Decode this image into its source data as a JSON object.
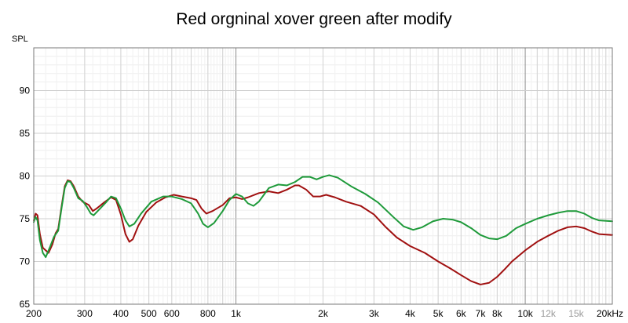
{
  "chart_data": {
    "type": "line",
    "title": "Red orgninal xover green after modify",
    "ylabel": "SPL",
    "xlabel": "",
    "x_scale": "log",
    "xlim": [
      200,
      20000
    ],
    "ylim": [
      65,
      95
    ],
    "grid": true,
    "x_ticks": [
      {
        "value": 200,
        "label": "200"
      },
      {
        "value": 300,
        "label": "300"
      },
      {
        "value": 400,
        "label": "400"
      },
      {
        "value": 500,
        "label": "500"
      },
      {
        "value": 600,
        "label": "600"
      },
      {
        "value": 800,
        "label": "800"
      },
      {
        "value": 1000,
        "label": "1k"
      },
      {
        "value": 2000,
        "label": "2k"
      },
      {
        "value": 3000,
        "label": "3k"
      },
      {
        "value": 4000,
        "label": "4k"
      },
      {
        "value": 5000,
        "label": "5k"
      },
      {
        "value": 6000,
        "label": "6k"
      },
      {
        "value": 7000,
        "label": "7k"
      },
      {
        "value": 8000,
        "label": "8k"
      },
      {
        "value": 10000,
        "label": "10k"
      },
      {
        "value": 12000,
        "label": "12k"
      },
      {
        "value": 15000,
        "label": "15k"
      },
      {
        "value": 20000,
        "label": "20kHz"
      }
    ],
    "y_ticks": [
      {
        "value": 65,
        "label": "65"
      },
      {
        "value": 70,
        "label": "70"
      },
      {
        "value": 75,
        "label": "75"
      },
      {
        "value": 80,
        "label": "80"
      },
      {
        "value": 85,
        "label": "85"
      },
      {
        "value": 90,
        "label": "90"
      }
    ],
    "series": [
      {
        "color": "#a01010",
        "points": [
          [
            200,
            74.8
          ],
          [
            203,
            75.6
          ],
          [
            206,
            75.4
          ],
          [
            210,
            73.2
          ],
          [
            215,
            71.6
          ],
          [
            220,
            71.3
          ],
          [
            225,
            71.0
          ],
          [
            232,
            72.0
          ],
          [
            238,
            73.3
          ],
          [
            243,
            73.8
          ],
          [
            250,
            76.6
          ],
          [
            256,
            78.8
          ],
          [
            262,
            79.5
          ],
          [
            268,
            79.4
          ],
          [
            275,
            78.8
          ],
          [
            285,
            77.6
          ],
          [
            295,
            77.0
          ],
          [
            310,
            76.6
          ],
          [
            320,
            75.9
          ],
          [
            330,
            76.2
          ],
          [
            350,
            76.9
          ],
          [
            370,
            77.5
          ],
          [
            385,
            77.2
          ],
          [
            400,
            75.5
          ],
          [
            415,
            73.2
          ],
          [
            428,
            72.3
          ],
          [
            440,
            72.6
          ],
          [
            460,
            74.2
          ],
          [
            490,
            75.8
          ],
          [
            530,
            76.9
          ],
          [
            570,
            77.5
          ],
          [
            610,
            77.8
          ],
          [
            650,
            77.6
          ],
          [
            700,
            77.4
          ],
          [
            730,
            77.2
          ],
          [
            760,
            76.2
          ],
          [
            790,
            75.6
          ],
          [
            830,
            75.9
          ],
          [
            900,
            76.6
          ],
          [
            950,
            77.4
          ],
          [
            1000,
            77.5
          ],
          [
            1050,
            77.3
          ],
          [
            1100,
            77.5
          ],
          [
            1200,
            78.0
          ],
          [
            1300,
            78.2
          ],
          [
            1400,
            78.0
          ],
          [
            1500,
            78.4
          ],
          [
            1600,
            78.9
          ],
          [
            1650,
            78.9
          ],
          [
            1750,
            78.4
          ],
          [
            1850,
            77.6
          ],
          [
            1950,
            77.6
          ],
          [
            2050,
            77.8
          ],
          [
            2200,
            77.5
          ],
          [
            2400,
            77.0
          ],
          [
            2700,
            76.5
          ],
          [
            3000,
            75.5
          ],
          [
            3300,
            74.0
          ],
          [
            3600,
            72.8
          ],
          [
            4000,
            71.8
          ],
          [
            4500,
            71.0
          ],
          [
            5000,
            70.0
          ],
          [
            5500,
            69.2
          ],
          [
            6000,
            68.4
          ],
          [
            6500,
            67.7
          ],
          [
            7000,
            67.3
          ],
          [
            7500,
            67.5
          ],
          [
            8000,
            68.2
          ],
          [
            8500,
            69.1
          ],
          [
            9000,
            70.0
          ],
          [
            10000,
            71.3
          ],
          [
            11000,
            72.3
          ],
          [
            12000,
            73.0
          ],
          [
            13000,
            73.6
          ],
          [
            14000,
            74.0
          ],
          [
            15000,
            74.1
          ],
          [
            16000,
            73.9
          ],
          [
            17000,
            73.5
          ],
          [
            18000,
            73.2
          ],
          [
            20000,
            73.1
          ]
        ]
      },
      {
        "color": "#1e9a3a",
        "points": [
          [
            200,
            74.6
          ],
          [
            203,
            75.2
          ],
          [
            206,
            74.8
          ],
          [
            210,
            72.5
          ],
          [
            215,
            71.0
          ],
          [
            220,
            70.5
          ],
          [
            227,
            71.6
          ],
          [
            235,
            72.9
          ],
          [
            243,
            73.6
          ],
          [
            250,
            76.4
          ],
          [
            256,
            78.6
          ],
          [
            262,
            79.4
          ],
          [
            268,
            79.3
          ],
          [
            275,
            78.6
          ],
          [
            285,
            77.4
          ],
          [
            295,
            77.1
          ],
          [
            305,
            76.4
          ],
          [
            315,
            75.6
          ],
          [
            322,
            75.4
          ],
          [
            335,
            76.0
          ],
          [
            355,
            76.9
          ],
          [
            370,
            77.6
          ],
          [
            385,
            77.4
          ],
          [
            400,
            76.2
          ],
          [
            415,
            74.8
          ],
          [
            428,
            74.1
          ],
          [
            445,
            74.4
          ],
          [
            470,
            75.6
          ],
          [
            510,
            77.0
          ],
          [
            560,
            77.6
          ],
          [
            600,
            77.6
          ],
          [
            650,
            77.3
          ],
          [
            700,
            76.8
          ],
          [
            740,
            75.6
          ],
          [
            770,
            74.4
          ],
          [
            800,
            74.0
          ],
          [
            840,
            74.5
          ],
          [
            900,
            75.9
          ],
          [
            950,
            77.2
          ],
          [
            1000,
            77.9
          ],
          [
            1050,
            77.6
          ],
          [
            1100,
            76.8
          ],
          [
            1150,
            76.5
          ],
          [
            1200,
            77.0
          ],
          [
            1300,
            78.6
          ],
          [
            1400,
            79.0
          ],
          [
            1500,
            78.9
          ],
          [
            1600,
            79.3
          ],
          [
            1700,
            79.9
          ],
          [
            1800,
            79.9
          ],
          [
            1900,
            79.6
          ],
          [
            2000,
            79.9
          ],
          [
            2100,
            80.1
          ],
          [
            2250,
            79.8
          ],
          [
            2500,
            78.8
          ],
          [
            2800,
            77.9
          ],
          [
            3100,
            76.9
          ],
          [
            3500,
            75.2
          ],
          [
            3800,
            74.1
          ],
          [
            4100,
            73.7
          ],
          [
            4400,
            74.0
          ],
          [
            4800,
            74.7
          ],
          [
            5200,
            75.0
          ],
          [
            5600,
            74.9
          ],
          [
            6000,
            74.6
          ],
          [
            6500,
            73.9
          ],
          [
            7000,
            73.1
          ],
          [
            7500,
            72.7
          ],
          [
            8000,
            72.6
          ],
          [
            8600,
            73.0
          ],
          [
            9300,
            73.9
          ],
          [
            10000,
            74.4
          ],
          [
            11000,
            75.0
          ],
          [
            12000,
            75.4
          ],
          [
            13000,
            75.7
          ],
          [
            14000,
            75.9
          ],
          [
            15000,
            75.9
          ],
          [
            16000,
            75.6
          ],
          [
            17000,
            75.1
          ],
          [
            18000,
            74.8
          ],
          [
            20000,
            74.7
          ]
        ]
      }
    ]
  }
}
